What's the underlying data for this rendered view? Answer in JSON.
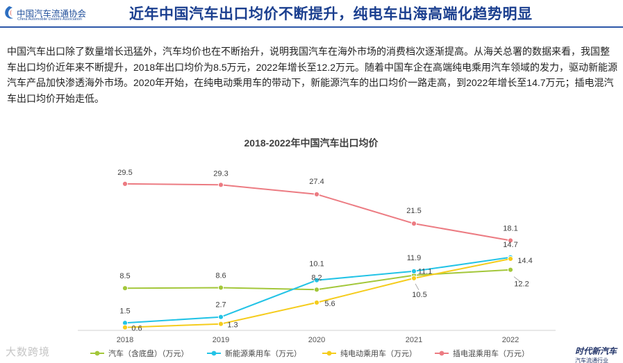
{
  "header": {
    "logo_cn": "中国汽车流通协会",
    "logo_en": "China Automobile Dealers Association",
    "title": "近年中国汽车出口均价不断提升，纯电车出海高端化趋势明显"
  },
  "paragraph": "中国汽车出口除了数量增长迅猛外，汽车均价也在不断抬升，说明我国汽车在海外市场的消费档次逐渐提高。从海关总署的数据来看，我国整车出口均价近年来不断提升，2018年出口均价为8.5万元，2022年增长至12.2万元。随着中国车企在高端纯电乘用汽车领域的发力，驱动新能源汽车产品加快渗透海外市场。2020年开始，在纯电动乘用车的带动下，新能源汽车的出口均价一路走高，到2022年增长至14.7万元；插电混汽车出口均价开始走低。",
  "watermark": {
    "left": "大数跨境",
    "right_line1": "时代新汽车",
    "right_line2": "汽车流通行业"
  },
  "colors": {
    "title": "#1b3f8f",
    "rule": "#2d57a8"
  },
  "chart_data": {
    "type": "line",
    "title": "2018-2022年中国汽车出口均价",
    "categories": [
      "2018",
      "2019",
      "2020",
      "2021",
      "2022"
    ],
    "ylim": [
      0,
      32
    ],
    "xlabel": "",
    "ylabel": "",
    "grid": false,
    "legend": "bottom",
    "series": [
      {
        "name": "汽车（含底盘）（万元）",
        "color": "#a3c73a",
        "values": [
          8.5,
          8.6,
          8.2,
          11.1,
          12.2
        ],
        "labels": [
          "8.5",
          "8.6",
          "8.2",
          "11.1",
          "12.2"
        ]
      },
      {
        "name": "新能源乘用车（万元）",
        "color": "#22c3e6",
        "values": [
          1.5,
          2.7,
          10.1,
          11.9,
          14.7
        ],
        "labels": [
          "1.5",
          "2.7",
          "10.1",
          "11.9",
          "14.7"
        ]
      },
      {
        "name": "纯电动乘用车（万元）",
        "color": "#f5cc1c",
        "values": [
          0.6,
          1.3,
          5.6,
          10.5,
          14.4
        ],
        "labels": [
          "0.6",
          "1.3",
          "5.6",
          "10.5",
          "14.4"
        ]
      },
      {
        "name": "插电混乘用车（万元）",
        "color": "#ec7b82",
        "values": [
          29.5,
          29.3,
          27.4,
          21.5,
          18.1
        ],
        "labels": [
          "29.5",
          "29.3",
          "27.4",
          "21.5",
          "18.1"
        ]
      }
    ]
  }
}
